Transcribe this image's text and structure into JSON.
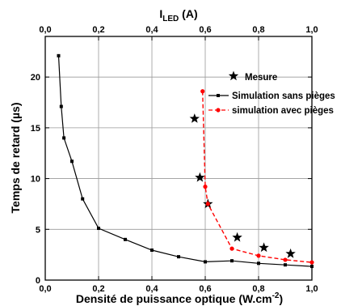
{
  "chart_data": {
    "type": "line",
    "top_axis": {
      "label": "I",
      "label_sub": "LED",
      "label_suffix": " (A)",
      "range": [
        0,
        1.0
      ],
      "ticks": [
        "0,0",
        "0,2",
        "0,4",
        "0,6",
        "0,8",
        "1,0"
      ]
    },
    "x_axis": {
      "label": "Densité de puissance optique (W.cm",
      "label_sup": "-2",
      "label_suffix": ")",
      "range": [
        0,
        1.0
      ],
      "ticks": [
        "0,0",
        "0,2",
        "0,4",
        "0,6",
        "0,8",
        "1,0"
      ]
    },
    "y_axis": {
      "label": "Temps de retard (µs)",
      "range": [
        0,
        24
      ],
      "ticks": [
        "0",
        "5",
        "10",
        "15",
        "20"
      ]
    },
    "grid": true,
    "legend_position": "top-right",
    "series": [
      {
        "name": "Mesure",
        "style": "star",
        "color": "#000000",
        "x": [
          0.56,
          0.58,
          0.61,
          0.72,
          0.82,
          0.92
        ],
        "y": [
          15.9,
          10.1,
          7.5,
          4.2,
          3.2,
          2.6
        ]
      },
      {
        "name": "Simulation sans pièges",
        "style": "solid-line-square-markers",
        "color": "#000000",
        "x": [
          0.05,
          0.06,
          0.07,
          0.1,
          0.14,
          0.2,
          0.3,
          0.4,
          0.5,
          0.6,
          0.7,
          0.8,
          0.9,
          1.0
        ],
        "y": [
          22.1,
          17.1,
          14.0,
          11.7,
          8.0,
          5.1,
          4.0,
          2.95,
          2.3,
          1.8,
          1.9,
          1.65,
          1.5,
          1.35
        ]
      },
      {
        "name": "simulation avec pièges",
        "style": "dashed-line-circle-markers",
        "color": "#ff0000",
        "x": [
          0.59,
          0.6,
          0.61,
          0.7,
          0.8,
          0.9,
          1.0
        ],
        "y": [
          18.6,
          9.2,
          7.5,
          3.1,
          2.4,
          2.0,
          1.75
        ]
      }
    ]
  }
}
